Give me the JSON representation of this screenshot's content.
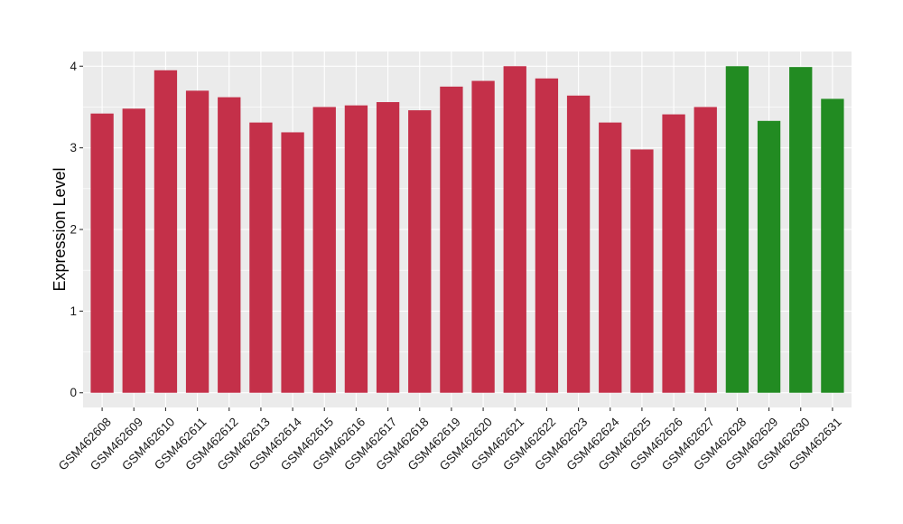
{
  "chart_data": {
    "type": "bar",
    "title": "",
    "xlabel": "",
    "ylabel": "Expression Level",
    "ylim": [
      -0.18,
      4.18
    ],
    "yticks": [
      0,
      1,
      2,
      3,
      4
    ],
    "grid": true,
    "legend": "none",
    "colors": {
      "group_a": "#c43049",
      "group_b": "#228b22"
    },
    "categories": [
      "GSM462608",
      "GSM462609",
      "GSM462610",
      "GSM462611",
      "GSM462612",
      "GSM462613",
      "GSM462614",
      "GSM462615",
      "GSM462616",
      "GSM462617",
      "GSM462618",
      "GSM462619",
      "GSM462620",
      "GSM462621",
      "GSM462622",
      "GSM462623",
      "GSM462624",
      "GSM462625",
      "GSM462626",
      "GSM462627",
      "GSM462628",
      "GSM462629",
      "GSM462630",
      "GSM462631"
    ],
    "values": [
      3.42,
      3.48,
      3.95,
      3.7,
      3.62,
      3.31,
      3.19,
      3.5,
      3.52,
      3.56,
      3.46,
      3.75,
      3.82,
      4.0,
      3.85,
      3.64,
      3.31,
      2.98,
      3.41,
      3.5,
      4.0,
      3.33,
      3.99,
      3.6
    ],
    "groups": [
      "group_a",
      "group_a",
      "group_a",
      "group_a",
      "group_a",
      "group_a",
      "group_a",
      "group_a",
      "group_a",
      "group_a",
      "group_a",
      "group_a",
      "group_a",
      "group_a",
      "group_a",
      "group_a",
      "group_a",
      "group_a",
      "group_a",
      "group_a",
      "group_b",
      "group_b",
      "group_b",
      "group_b"
    ]
  }
}
